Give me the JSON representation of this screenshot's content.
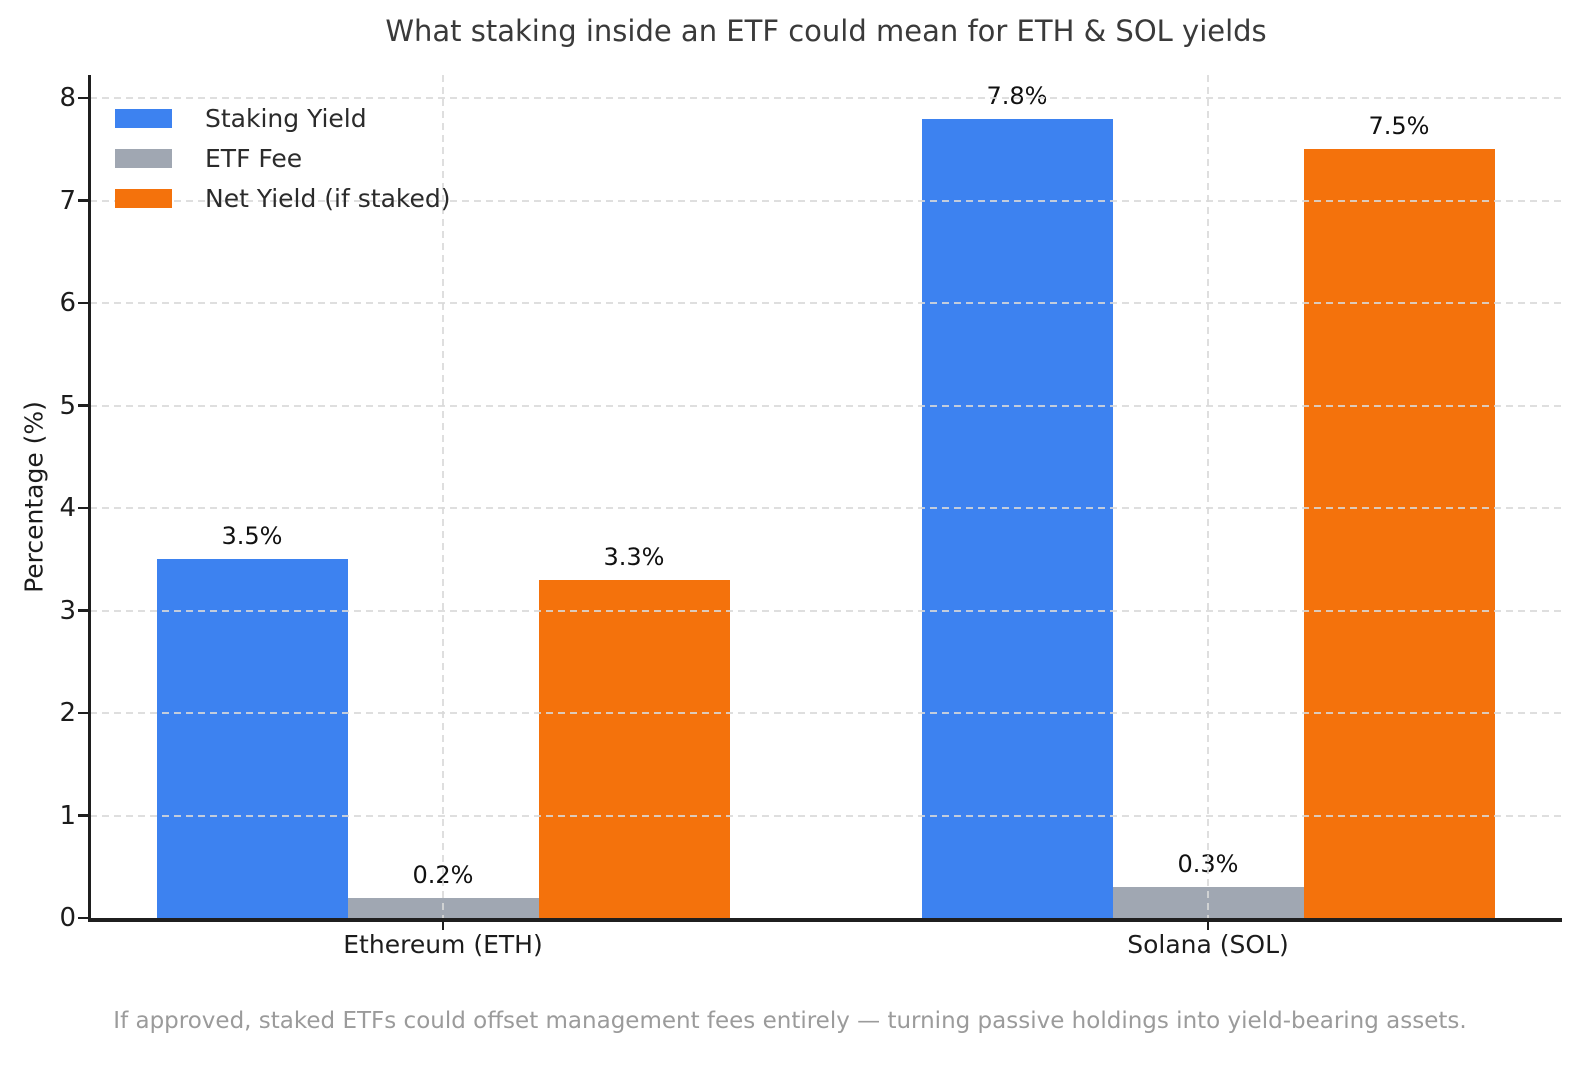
{
  "figure": {
    "footnote": "If approved, staked ETFs could offset management fees entirely — turning passive holdings into yield-bearing assets."
  },
  "chart_data": {
    "type": "bar",
    "title": "What staking inside an ETF could mean for ETH & SOL yields",
    "categories": [
      "Ethereum (ETH)",
      "Solana (SOL)"
    ],
    "series": [
      {
        "name": "Staking Yield",
        "color": "#3d82f0",
        "values": [
          3.5,
          7.8
        ],
        "bar_labels": [
          "3.5%",
          "7.8%"
        ]
      },
      {
        "name": "ETF Fee",
        "color": "#a0a7b2",
        "values": [
          0.2,
          0.3
        ],
        "bar_labels": [
          "0.2%",
          "0.3%"
        ]
      },
      {
        "name": "Net Yield (if staked)",
        "color": "#f4720c",
        "values": [
          3.3,
          7.5
        ],
        "bar_labels": [
          "3.3%",
          "7.5%"
        ]
      }
    ],
    "xlabel": "",
    "ylabel": "Percentage (%)",
    "yticks": [
      "0",
      "1",
      "2",
      "3",
      "4",
      "5",
      "6",
      "7",
      "8"
    ],
    "ylim": [
      0,
      8.22
    ],
    "grid": true,
    "grid_style": "dashed",
    "legend_position": "upper left",
    "colors": {
      "grid": "#d9d9d9",
      "axis": "#1f1f1f",
      "tick_label": "#1c1c1c",
      "title": "#3a3a3a",
      "footnote": "#9b9b9b",
      "bar_label": "#111111"
    }
  }
}
